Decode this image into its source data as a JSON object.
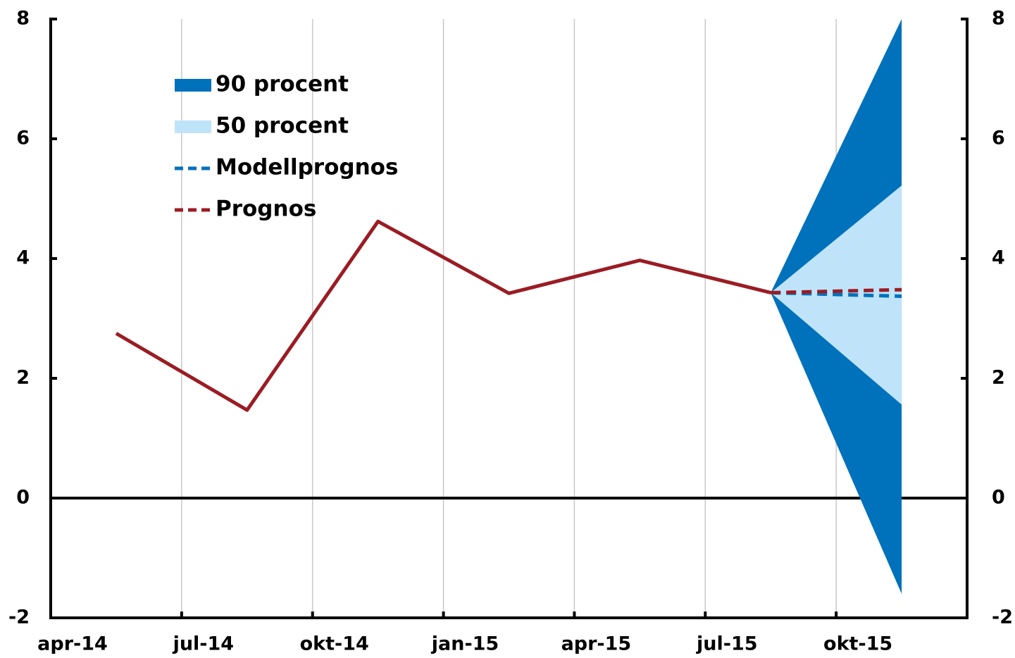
{
  "chart_data": {
    "type": "line",
    "categories": [
      "apr-14",
      "jul-14",
      "okt-14",
      "jan-15",
      "apr-15",
      "jul-15",
      "okt-15"
    ],
    "ylim": [
      -2,
      8
    ],
    "yticks": [
      -2,
      0,
      2,
      4,
      6,
      8
    ],
    "y2lim": [
      -2,
      8
    ],
    "y2ticks": [
      -2,
      0,
      2,
      4,
      6,
      8
    ],
    "grid": true,
    "bands": [
      {
        "name": "90 procent",
        "color": "#0071bb",
        "lower": [
          null,
          null,
          null,
          null,
          null,
          3.43,
          -1.6
        ],
        "upper": [
          null,
          null,
          null,
          null,
          null,
          3.43,
          8.0
        ]
      },
      {
        "name": "50 procent",
        "color": "#bfe4fa",
        "lower": [
          null,
          null,
          null,
          null,
          null,
          3.43,
          1.56
        ],
        "upper": [
          null,
          null,
          null,
          null,
          null,
          3.43,
          5.22
        ]
      }
    ],
    "series": [
      {
        "name": "Modellprognos",
        "color": "#0071bb",
        "dashed": true,
        "values": [
          null,
          null,
          null,
          null,
          null,
          3.43,
          3.37
        ]
      },
      {
        "name": "Prognos",
        "color": "#9b1c24",
        "dashed": true,
        "values": [
          null,
          null,
          null,
          null,
          null,
          3.43,
          3.48
        ]
      },
      {
        "color": "#9b1c24",
        "dashed": false,
        "values": [
          2.75,
          1.47,
          4.62,
          3.42,
          3.97,
          3.43,
          null
        ]
      }
    ]
  }
}
